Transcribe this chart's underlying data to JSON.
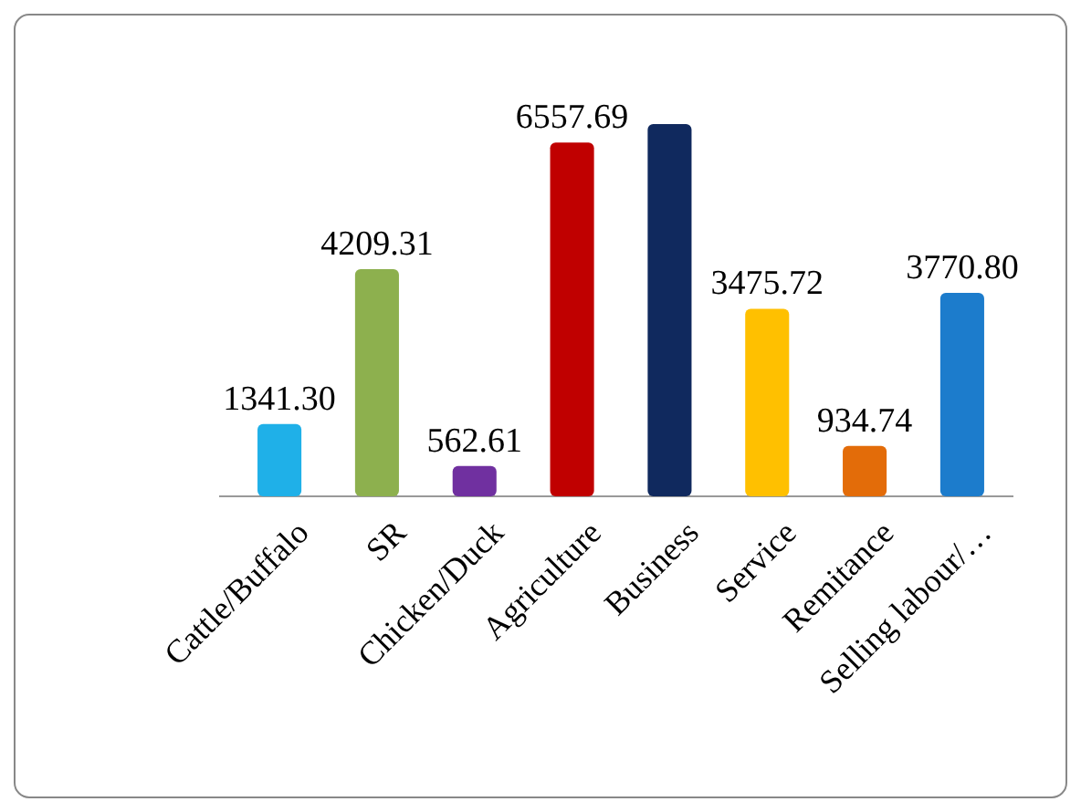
{
  "chart_data": {
    "type": "bar",
    "categories": [
      "Cattle/Buffalo",
      "SR",
      "Chicken/Duck",
      "Agriculture",
      "Business",
      "Service",
      "Remitance",
      "Selling labour/…"
    ],
    "values": [
      1341.3,
      4209.31,
      562.61,
      6557.69,
      6900,
      3475.72,
      934.74,
      3770.8
    ],
    "colors": [
      "#1fb0e8",
      "#8db04e",
      "#7030a0",
      "#c00000",
      "#10295e",
      "#ffc000",
      "#e36c09",
      "#1c7ccc"
    ],
    "value_labels": [
      "1341.30",
      "4209.31",
      "562.61",
      "6557.69",
      null,
      "3475.72",
      "934.74",
      "3770.80"
    ],
    "grid": false
  }
}
